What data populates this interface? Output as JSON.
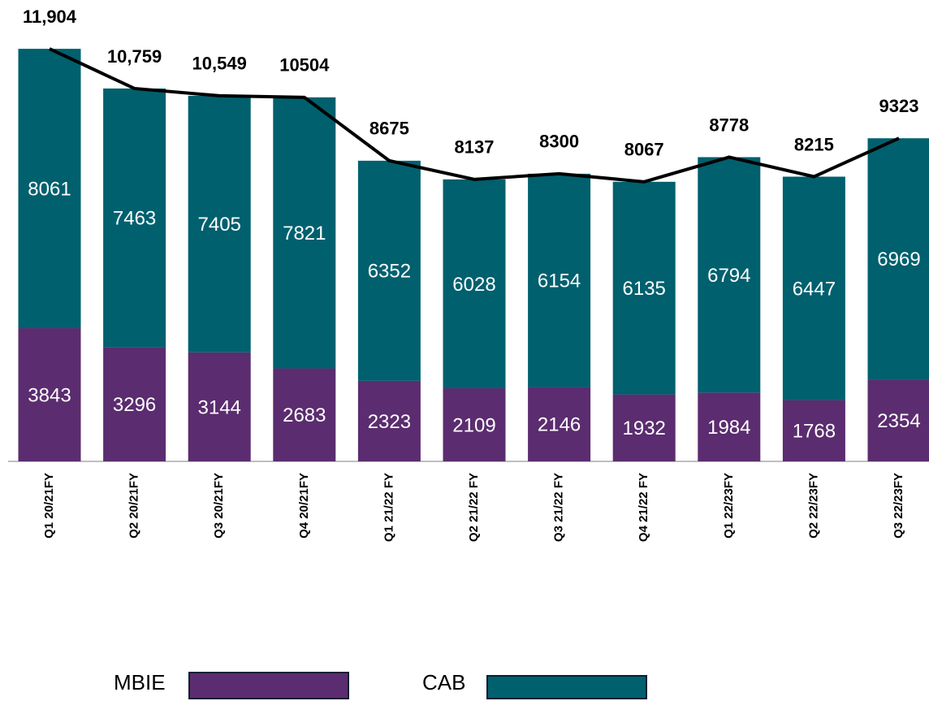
{
  "chart_data": {
    "type": "stacked_bar_line",
    "categories": [
      "Q1 20/21FY",
      "Q2 20/21FY",
      "Q3 20/21FY",
      "Q4 20/21FY",
      "Q1 21/22 FY",
      "Q2 21/22 FY",
      "Q3 21/22 FY",
      "Q4 21/22 FY",
      "Q1 22/23FY",
      "Q2 22/23FY",
      "Q3 22/23FY"
    ],
    "series": [
      {
        "name": "MBIE",
        "color": "#5b2c6f",
        "values": [
          3843,
          3296,
          3144,
          2683,
          2323,
          2109,
          2146,
          1932,
          1984,
          1768,
          2354
        ]
      },
      {
        "name": "CAB",
        "color": "#00606e",
        "values": [
          8061,
          7463,
          7405,
          7821,
          6352,
          6028,
          6154,
          6135,
          6794,
          6447,
          6969
        ]
      }
    ],
    "line": {
      "color": "#000000",
      "values": [
        11904,
        10759,
        10549,
        10504,
        8675,
        8137,
        8300,
        8067,
        8778,
        8215,
        9323
      ],
      "value_labels": [
        "11,904",
        "10,759",
        "10,549",
        "10504",
        "8675",
        "8137",
        "8300",
        "8067",
        "8778",
        "8215",
        "9323"
      ]
    },
    "ylim": [
      0,
      12000
    ]
  }
}
